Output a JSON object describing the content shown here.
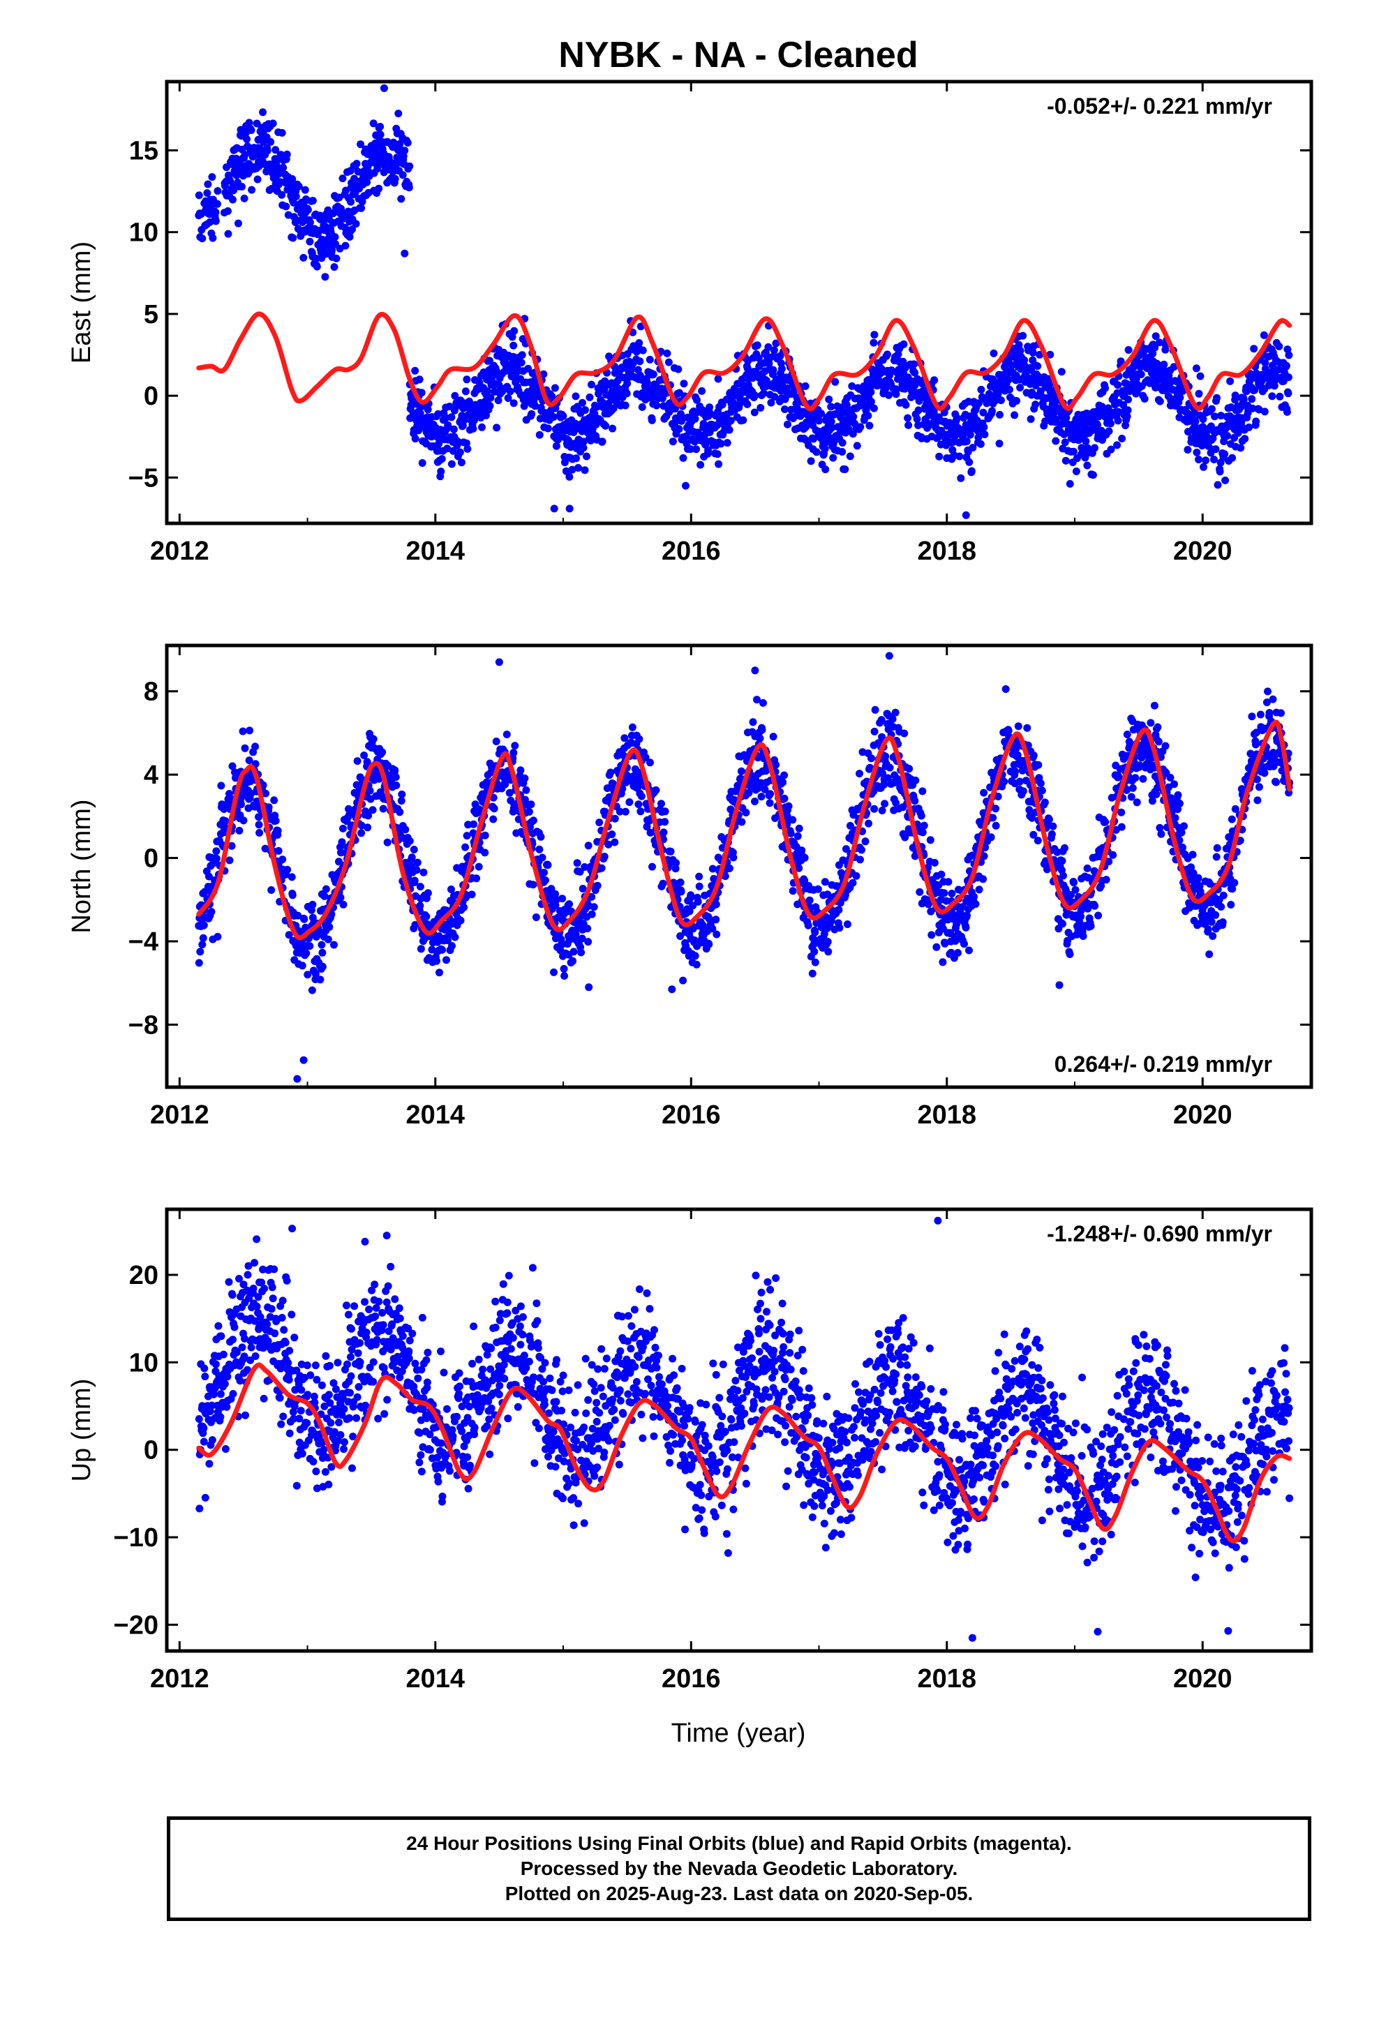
{
  "figure": {
    "title": "NYBK  - NA - Cleaned",
    "xlabel": "Time (year)"
  },
  "colors": {
    "points": "#0000ff",
    "model": "#ff1a1a",
    "axes": "#000000"
  },
  "chart_data": [
    {
      "type": "scatter",
      "ylabel": "East (mm)",
      "rate_label": "-0.052+/- 0.221 mm/yr",
      "rate_position": "top-right",
      "xlim": [
        2011.9,
        2020.85
      ],
      "ylim": [
        -7.8,
        19.2
      ],
      "xticks": [
        2012,
        2014,
        2016,
        2018,
        2020
      ],
      "xtick_labels": [
        "2012",
        "2014",
        "2016",
        "2018",
        "2020"
      ],
      "yticks": [
        -5,
        0,
        5,
        10,
        15
      ],
      "ytick_labels": [
        "−5",
        "0",
        "5",
        "10",
        "15"
      ],
      "grid": false,
      "series": [
        {
          "kind": "daily_positions",
          "segments": [
            {
              "x_start": 2012.15,
              "x_end": 2012.3,
              "offset": 11.8,
              "trend": 0.0,
              "amplitude": 1.0,
              "phase": 0.6,
              "noise": 0.9
            },
            {
              "x_start": 2012.35,
              "x_end": 2013.8,
              "offset": 12.4,
              "trend": 0.0,
              "amplitude": 2.6,
              "phase": 0.62,
              "noise": 1.1
            },
            {
              "x_start": 2013.8,
              "x_end": 2020.68,
              "offset": -0.4,
              "trend": 0.0,
              "amplitude": 2.0,
              "phase": 0.58,
              "noise": 1.1
            }
          ],
          "outliers": [
            [
              2013.76,
              8.7
            ],
            [
              2013.6,
              18.8
            ],
            [
              2014.93,
              -6.9
            ],
            [
              2015.05,
              -6.9
            ],
            [
              2018.15,
              -7.3
            ]
          ]
        },
        {
          "kind": "model",
          "points": [
            [
              2012.15,
              1.7
            ],
            [
              2012.25,
              1.8
            ],
            [
              2012.35,
              1.6
            ],
            [
              2012.48,
              3.5
            ],
            [
              2012.62,
              5.0
            ],
            [
              2012.75,
              3.6
            ],
            [
              2012.88,
              0.3
            ],
            [
              2012.95,
              -0.3
            ],
            [
              2013.08,
              0.6
            ],
            [
              2013.22,
              1.6
            ],
            [
              2013.32,
              1.6
            ],
            [
              2013.42,
              2.3
            ],
            [
              2013.56,
              4.9
            ],
            [
              2013.68,
              4.0
            ],
            [
              2013.8,
              1.0
            ],
            [
              2013.9,
              -0.4
            ],
            [
              2014.02,
              0.6
            ],
            [
              2014.12,
              1.6
            ],
            [
              2014.3,
              1.7
            ],
            [
              2014.45,
              3.1
            ],
            [
              2014.62,
              4.9
            ],
            [
              2014.74,
              3.2
            ],
            [
              2014.87,
              -0.3
            ],
            [
              2014.97,
              -0.1
            ],
            [
              2015.1,
              1.3
            ],
            [
              2015.25,
              1.4
            ],
            [
              2015.4,
              2.2
            ],
            [
              2015.58,
              4.8
            ],
            [
              2015.7,
              3.2
            ],
            [
              2015.87,
              -0.3
            ],
            [
              2015.97,
              -0.1
            ],
            [
              2016.1,
              1.4
            ],
            [
              2016.26,
              1.4
            ],
            [
              2016.4,
              2.4
            ],
            [
              2016.58,
              4.7
            ],
            [
              2016.72,
              3.0
            ],
            [
              2016.9,
              -0.6
            ],
            [
              2017.0,
              -0.2
            ],
            [
              2017.12,
              1.3
            ],
            [
              2017.3,
              1.3
            ],
            [
              2017.45,
              2.5
            ],
            [
              2017.6,
              4.6
            ],
            [
              2017.74,
              3.0
            ],
            [
              2017.92,
              -0.6
            ],
            [
              2018.02,
              -0.1
            ],
            [
              2018.15,
              1.4
            ],
            [
              2018.3,
              1.4
            ],
            [
              2018.45,
              2.5
            ],
            [
              2018.6,
              4.6
            ],
            [
              2018.74,
              3.0
            ],
            [
              2018.92,
              -0.6
            ],
            [
              2019.02,
              -0.1
            ],
            [
              2019.15,
              1.3
            ],
            [
              2019.3,
              1.3
            ],
            [
              2019.45,
              2.4
            ],
            [
              2019.62,
              4.6
            ],
            [
              2019.76,
              2.9
            ],
            [
              2019.94,
              -0.6
            ],
            [
              2020.04,
              -0.1
            ],
            [
              2020.15,
              1.3
            ],
            [
              2020.3,
              1.3
            ],
            [
              2020.45,
              2.6
            ],
            [
              2020.6,
              4.5
            ],
            [
              2020.68,
              4.3
            ]
          ]
        }
      ]
    },
    {
      "type": "scatter",
      "ylabel": "North (mm)",
      "rate_label": "0.264+/- 0.219 mm/yr",
      "rate_position": "bottom-right",
      "xlim": [
        2011.9,
        2020.85
      ],
      "ylim": [
        -11.0,
        10.2
      ],
      "xticks": [
        2012,
        2014,
        2016,
        2018,
        2020
      ],
      "xtick_labels": [
        "2012",
        "2014",
        "2016",
        "2018",
        "2020"
      ],
      "yticks": [
        -8,
        -4,
        0,
        4,
        8
      ],
      "ytick_labels": [
        "−8",
        "−4",
        "0",
        "4",
        "8"
      ],
      "grid": false,
      "series": [
        {
          "kind": "daily_positions",
          "segments": [
            {
              "x_start": 2012.15,
              "x_end": 2020.68,
              "offset": 0.5,
              "trend": 0.26,
              "amplitude": 4.0,
              "phase": 0.53,
              "noise": 1.0
            }
          ],
          "outliers": [
            [
              2012.92,
              -10.6
            ],
            [
              2012.97,
              -9.7
            ],
            [
              2014.5,
              9.4
            ],
            [
              2016.5,
              9.0
            ],
            [
              2017.55,
              9.7
            ],
            [
              2018.88,
              -6.1
            ],
            [
              2015.85,
              -6.3
            ],
            [
              2015.2,
              -6.2
            ]
          ]
        },
        {
          "kind": "model",
          "points": [
            [
              2012.15,
              -2.7
            ],
            [
              2012.3,
              -1.2
            ],
            [
              2012.45,
              3.2
            ],
            [
              2012.52,
              4.2
            ],
            [
              2012.6,
              3.9
            ],
            [
              2012.75,
              -0.5
            ],
            [
              2012.9,
              -3.6
            ],
            [
              2013.02,
              -3.5
            ],
            [
              2013.15,
              -2.6
            ],
            [
              2013.3,
              -0.3
            ],
            [
              2013.45,
              3.5
            ],
            [
              2013.52,
              4.5
            ],
            [
              2013.6,
              3.8
            ],
            [
              2013.75,
              -0.8
            ],
            [
              2013.92,
              -3.5
            ],
            [
              2014.05,
              -3.0
            ],
            [
              2014.2,
              -1.8
            ],
            [
              2014.35,
              1.5
            ],
            [
              2014.52,
              4.8
            ],
            [
              2014.6,
              4.2
            ],
            [
              2014.75,
              0.2
            ],
            [
              2014.92,
              -3.2
            ],
            [
              2015.05,
              -3.0
            ],
            [
              2015.2,
              -1.5
            ],
            [
              2015.35,
              1.8
            ],
            [
              2015.52,
              5.0
            ],
            [
              2015.62,
              4.3
            ],
            [
              2015.78,
              0.0
            ],
            [
              2015.92,
              -3.0
            ],
            [
              2016.05,
              -2.8
            ],
            [
              2016.2,
              -1.4
            ],
            [
              2016.35,
              2.2
            ],
            [
              2016.52,
              5.3
            ],
            [
              2016.62,
              4.4
            ],
            [
              2016.78,
              0.0
            ],
            [
              2016.92,
              -2.7
            ],
            [
              2017.05,
              -2.5
            ],
            [
              2017.2,
              -1.2
            ],
            [
              2017.35,
              2.4
            ],
            [
              2017.52,
              5.6
            ],
            [
              2017.62,
              4.8
            ],
            [
              2017.78,
              0.4
            ],
            [
              2017.92,
              -2.4
            ],
            [
              2018.05,
              -2.2
            ],
            [
              2018.2,
              -0.9
            ],
            [
              2018.35,
              2.8
            ],
            [
              2018.52,
              5.8
            ],
            [
              2018.62,
              5.0
            ],
            [
              2018.78,
              0.6
            ],
            [
              2018.92,
              -2.2
            ],
            [
              2019.05,
              -2.0
            ],
            [
              2019.2,
              -0.6
            ],
            [
              2019.35,
              3.0
            ],
            [
              2019.52,
              6.0
            ],
            [
              2019.62,
              5.2
            ],
            [
              2019.78,
              0.8
            ],
            [
              2019.92,
              -1.9
            ],
            [
              2020.05,
              -1.7
            ],
            [
              2020.2,
              -0.4
            ],
            [
              2020.35,
              3.2
            ],
            [
              2020.55,
              6.4
            ],
            [
              2020.62,
              5.6
            ],
            [
              2020.68,
              3.3
            ]
          ]
        }
      ]
    },
    {
      "type": "scatter",
      "ylabel": "Up (mm)",
      "rate_label": "-1.248+/- 0.690 mm/yr",
      "rate_position": "top-right",
      "xlim": [
        2011.9,
        2020.85
      ],
      "ylim": [
        -23.0,
        27.5
      ],
      "xticks": [
        2012,
        2014,
        2016,
        2018,
        2020
      ],
      "xtick_labels": [
        "2012",
        "2014",
        "2016",
        "2018",
        "2020"
      ],
      "yticks": [
        -20,
        -10,
        0,
        10,
        20
      ],
      "ytick_labels": [
        "−20",
        "−10",
        "0",
        "10",
        "20"
      ],
      "grid": false,
      "series": [
        {
          "kind": "daily_positions",
          "segments": [
            {
              "x_start": 2012.15,
              "x_end": 2020.68,
              "offset": 4.5,
              "trend": -1.25,
              "amplitude": 6.0,
              "phase": 0.6,
              "noise": 3.8
            }
          ],
          "outliers": [
            [
              2012.88,
              25.3
            ],
            [
              2013.45,
              23.8
            ],
            [
              2013.62,
              24.5
            ],
            [
              2017.93,
              26.2
            ],
            [
              2018.2,
              -21.5
            ],
            [
              2019.18,
              -20.8
            ],
            [
              2020.2,
              -20.7
            ]
          ]
        },
        {
          "kind": "model",
          "points": [
            [
              2012.15,
              0.2
            ],
            [
              2012.25,
              -0.5
            ],
            [
              2012.4,
              3.0
            ],
            [
              2012.58,
              9.2
            ],
            [
              2012.68,
              9.0
            ],
            [
              2012.85,
              6.3
            ],
            [
              2013.0,
              5.3
            ],
            [
              2013.1,
              3.0
            ],
            [
              2013.22,
              -1.5
            ],
            [
              2013.3,
              -1.2
            ],
            [
              2013.45,
              3.0
            ],
            [
              2013.58,
              8.0
            ],
            [
              2013.7,
              7.5
            ],
            [
              2013.82,
              5.7
            ],
            [
              2013.95,
              5.0
            ],
            [
              2014.05,
              2.5
            ],
            [
              2014.2,
              -2.8
            ],
            [
              2014.3,
              -2.6
            ],
            [
              2014.45,
              2.5
            ],
            [
              2014.6,
              6.8
            ],
            [
              2014.72,
              6.2
            ],
            [
              2014.88,
              3.3
            ],
            [
              2014.98,
              2.3
            ],
            [
              2015.1,
              -2.0
            ],
            [
              2015.22,
              -4.5
            ],
            [
              2015.32,
              -3.5
            ],
            [
              2015.45,
              1.5
            ],
            [
              2015.6,
              5.4
            ],
            [
              2015.72,
              5.0
            ],
            [
              2015.88,
              2.5
            ],
            [
              2016.0,
              1.3
            ],
            [
              2016.1,
              -2.0
            ],
            [
              2016.22,
              -5.3
            ],
            [
              2016.32,
              -4.0
            ],
            [
              2016.45,
              0.5
            ],
            [
              2016.6,
              4.6
            ],
            [
              2016.72,
              4.2
            ],
            [
              2016.88,
              1.5
            ],
            [
              2017.0,
              0.3
            ],
            [
              2017.1,
              -3.0
            ],
            [
              2017.22,
              -6.5
            ],
            [
              2017.32,
              -5.3
            ],
            [
              2017.45,
              -0.5
            ],
            [
              2017.6,
              3.2
            ],
            [
              2017.72,
              2.8
            ],
            [
              2017.88,
              0.3
            ],
            [
              2018.0,
              -1.0
            ],
            [
              2018.1,
              -4.0
            ],
            [
              2018.22,
              -7.7
            ],
            [
              2018.32,
              -6.5
            ],
            [
              2018.45,
              -1.5
            ],
            [
              2018.6,
              1.8
            ],
            [
              2018.72,
              1.3
            ],
            [
              2018.88,
              -1.0
            ],
            [
              2019.0,
              -2.2
            ],
            [
              2019.1,
              -5.3
            ],
            [
              2019.22,
              -9.0
            ],
            [
              2019.32,
              -7.5
            ],
            [
              2019.45,
              -2.5
            ],
            [
              2019.58,
              0.9
            ],
            [
              2019.7,
              0.2
            ],
            [
              2019.88,
              -2.3
            ],
            [
              2020.0,
              -3.5
            ],
            [
              2020.1,
              -6.5
            ],
            [
              2020.22,
              -10.3
            ],
            [
              2020.32,
              -9.0
            ],
            [
              2020.45,
              -3.5
            ],
            [
              2020.58,
              -0.8
            ],
            [
              2020.68,
              -1.0
            ]
          ]
        }
      ]
    }
  ],
  "footer": {
    "line1": "24 Hour Positions Using Final Orbits (blue) and Rapid Orbits (magenta).",
    "line2": "Processed by the Nevada Geodetic Laboratory.",
    "line3": "Plotted on 2025-Aug-23. Last data on 2020-Sep-05."
  }
}
